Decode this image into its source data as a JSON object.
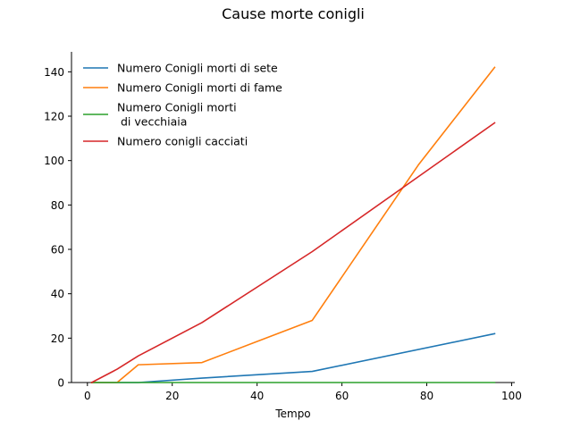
{
  "chart_data": {
    "type": "line",
    "title": "Cause morte conigli",
    "xlabel": "Tempo",
    "ylabel": "",
    "xlim": [
      -3.75,
      100.75
    ],
    "ylim": [
      0,
      149
    ],
    "xticks": [
      0,
      20,
      40,
      60,
      80,
      100
    ],
    "yticks": [
      0,
      20,
      40,
      60,
      80,
      100,
      120,
      140
    ],
    "grid": false,
    "legend_position": "top-left",
    "series": [
      {
        "name": "Numero Conigli morti di sete",
        "color": "#1f77b4",
        "x": [
          1,
          12,
          27,
          53,
          96
        ],
        "y": [
          0,
          0,
          2,
          5,
          22
        ]
      },
      {
        "name": "Numero Conigli morti di fame",
        "color": "#ff7f0e",
        "x": [
          1,
          7,
          12,
          27,
          53,
          78,
          96
        ],
        "y": [
          0,
          0,
          8,
          9,
          28,
          98,
          142
        ]
      },
      {
        "name": "Numero Conigli morti\n di vecchiaia",
        "color": "#2ca02c",
        "x": [
          1,
          96
        ],
        "y": [
          0,
          0
        ]
      },
      {
        "name": "Numero conigli cacciati",
        "color": "#d62728",
        "x": [
          1,
          7,
          12,
          27,
          53,
          96
        ],
        "y": [
          0,
          6,
          12,
          27,
          59,
          117
        ]
      }
    ]
  }
}
